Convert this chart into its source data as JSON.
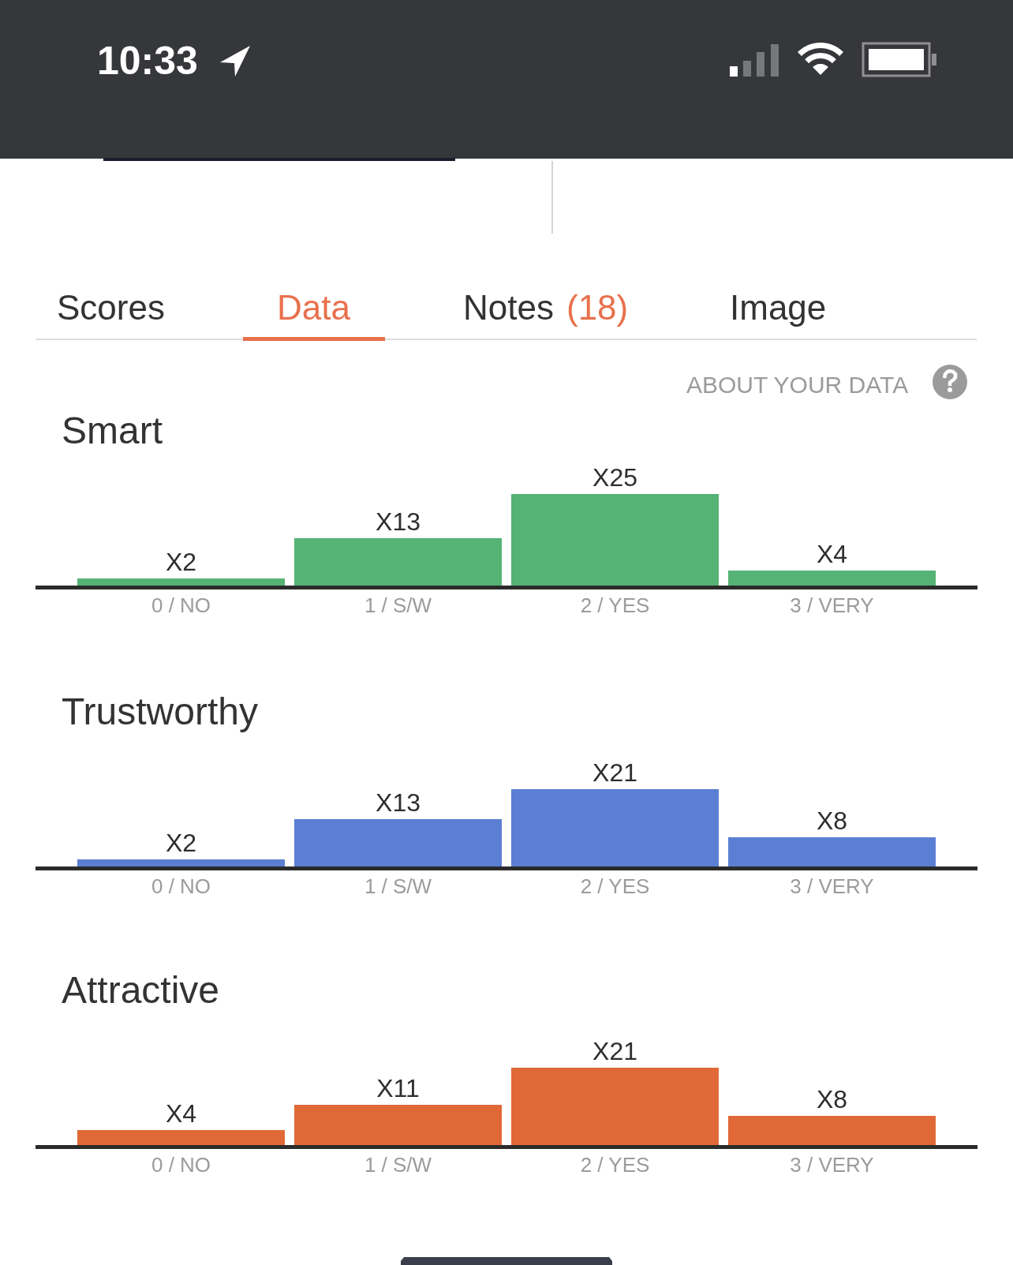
{
  "chart_data": [
    {
      "type": "other",
      "annotations": [
        "10:33",
        "Scores",
        "Data",
        "Notes",
        "(18)",
        "Image",
        "ABOUT YOUR DATA"
      ]
    },
    {
      "type": "bar",
      "title": "Smart",
      "categories": [
        "0 / NO",
        "1 / S/W",
        "2 / YES",
        "3 / VERY"
      ],
      "values": [
        2,
        13,
        25,
        4
      ],
      "color": "#55b375",
      "value_labels": [
        "X2",
        "X13",
        "X25",
        "X4"
      ],
      "tick_labels": "x"
    },
    {
      "type": "bar",
      "title": "Trustworthy",
      "categories": [
        "0 / NO",
        "1 / S/W",
        "2 / YES",
        "3 / VERY"
      ],
      "values": [
        2,
        13,
        21,
        8
      ],
      "color": "#5b7fd3",
      "value_labels": [
        "X2",
        "X13",
        "X21",
        "X8"
      ],
      "tick_labels": "x"
    },
    {
      "type": "bar",
      "title": "Attractive",
      "categories": [
        "0 / NO",
        "1 / S/W",
        "2 / YES",
        "3 / VERY"
      ],
      "values": [
        4,
        11,
        21,
        8
      ],
      "color": "#e06937",
      "value_labels": [
        "X4",
        "X11",
        "X21",
        "X8"
      ],
      "tick_labels": "x"
    }
  ]
}
